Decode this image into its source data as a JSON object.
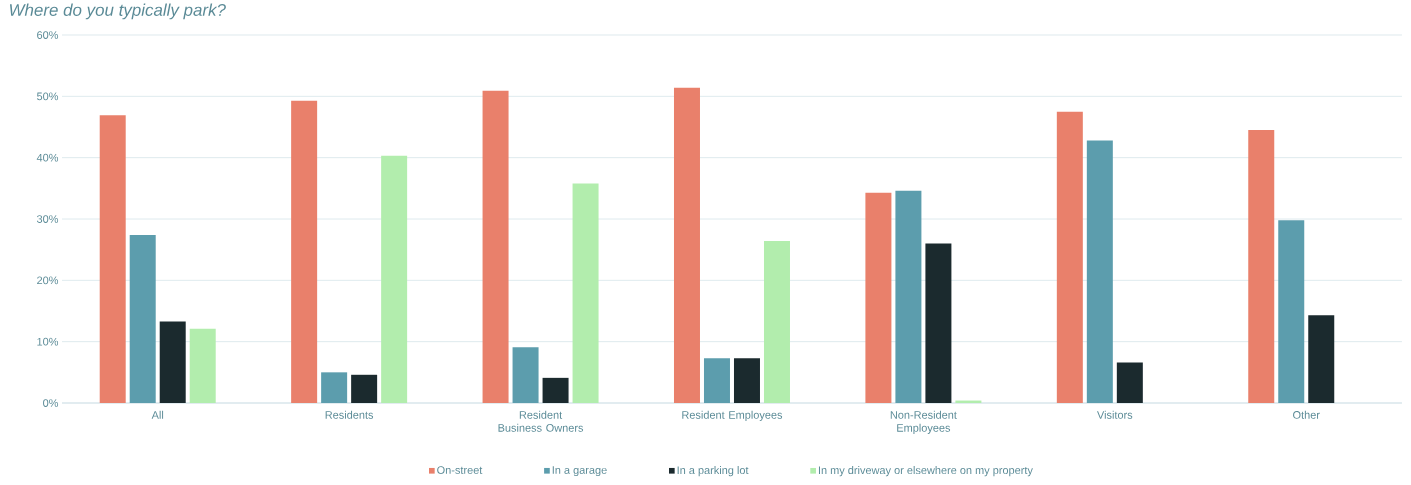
{
  "chart_data": {
    "type": "bar",
    "title": "Where do you typically park?",
    "categories": [
      "All",
      "Residents",
      "Resident Business Owners",
      "Resident Employees",
      "Non-Resident Employees",
      "Visitors",
      "Other"
    ],
    "series": [
      {
        "name": "On-street",
        "color": "#e9806b",
        "values": [
          46.9,
          49.3,
          50.9,
          51.4,
          34.3,
          47.5,
          44.5
        ]
      },
      {
        "name": "In a garage",
        "color": "#5c9dad",
        "values": [
          27.4,
          5.0,
          9.1,
          7.3,
          34.6,
          42.8,
          29.8
        ]
      },
      {
        "name": "In a parking lot",
        "color": "#1b2a2e",
        "values": [
          13.3,
          4.6,
          4.1,
          7.3,
          26.0,
          6.6,
          14.3
        ]
      },
      {
        "name": "In my driveway or elsewhere on my property",
        "color": "#b2edad",
        "values": [
          12.1,
          40.3,
          35.8,
          26.4,
          0.4,
          null,
          null
        ]
      }
    ],
    "ylim": [
      0,
      60
    ],
    "yticks": [
      {
        "value": 0,
        "label": "0%"
      },
      {
        "value": 10,
        "label": "10%"
      },
      {
        "value": 20,
        "label": "20%"
      },
      {
        "value": 30,
        "label": "30%"
      },
      {
        "value": 40,
        "label": "40%"
      },
      {
        "value": 50,
        "label": "50%"
      },
      {
        "value": 60,
        "label": "60%"
      }
    ],
    "grid": "y",
    "legend": "bottom"
  }
}
